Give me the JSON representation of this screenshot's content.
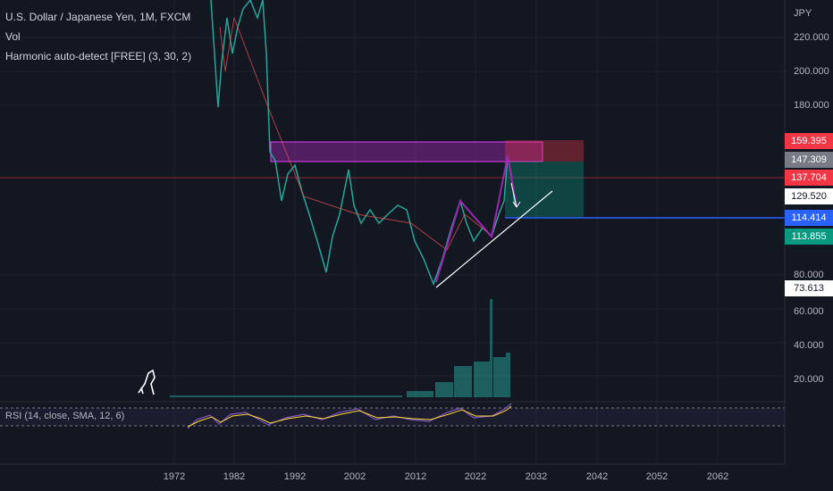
{
  "header": {
    "symbol": "U.S. Dollar / Japanese Yen, 1M, FXCM",
    "volume": "Vol",
    "indicator": "Harmonic auto-detect [FREE] (3, 30, 2)"
  },
  "price_axis": {
    "currency": "JPY",
    "labels": [
      "220.000",
      "200.000",
      "180.000",
      "80.000",
      "60.000",
      "40.000",
      "20.000"
    ]
  },
  "price_badges": [
    "159.395",
    "147.309",
    "137.704",
    "129.520",
    "114.414",
    "113.855",
    "73.613"
  ],
  "rsi_label": "RSI (14, close, SMA, 12, 6)",
  "time_axis": [
    "1972",
    "1982",
    "1992",
    "2002",
    "2012",
    "2022",
    "2032",
    "2042",
    "2052",
    "2062"
  ]
}
